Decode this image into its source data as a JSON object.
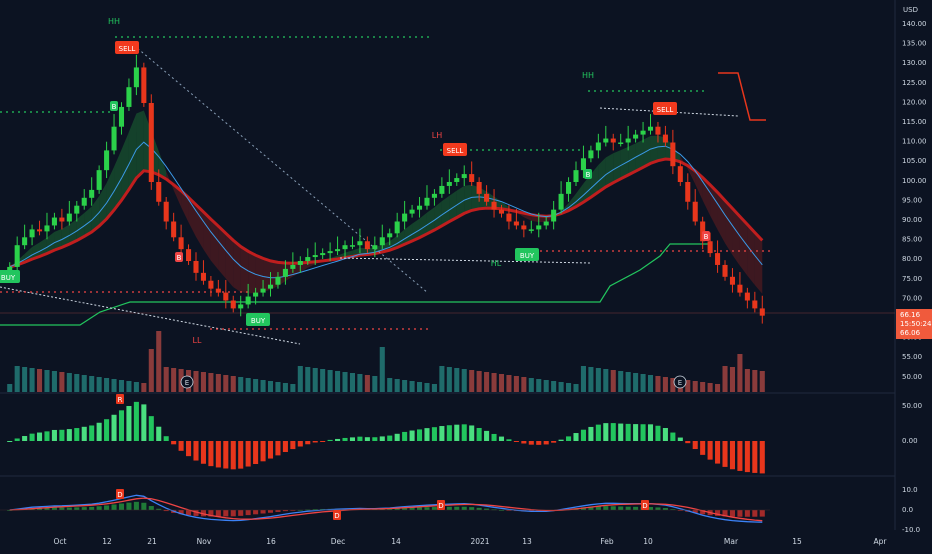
{
  "price_axis": {
    "currency": "USD",
    "ticks": [
      "140.00",
      "135.00",
      "130.00",
      "125.00",
      "120.00",
      "115.00",
      "110.00",
      "105.00",
      "100.00",
      "95.00",
      "90.00",
      "85.00",
      "80.00",
      "75.00",
      "70.00",
      "65.00",
      "60.00",
      "55.00",
      "50.00"
    ],
    "last_price_label": "66.16",
    "countdown_label": "15:50:24",
    "prev_close_label": "66.06"
  },
  "osc1_axis": {
    "ticks": [
      "50.00",
      "0.00"
    ]
  },
  "osc2_axis": {
    "ticks": [
      "10.0",
      "0.0",
      "-10.0"
    ]
  },
  "time_axis": {
    "labels": [
      "Oct",
      "12",
      "21",
      "Nov",
      "16",
      "Dec",
      "14",
      "2021",
      "13",
      "Feb",
      "10",
      "Mar",
      "15",
      "Apr"
    ]
  },
  "signals": [
    {
      "label": "SELL",
      "type": "sell"
    },
    {
      "label": "SELL",
      "type": "sell"
    },
    {
      "label": "SELL",
      "type": "sell"
    },
    {
      "label": "BUY",
      "type": "buy"
    },
    {
      "label": "BUY",
      "type": "buy"
    },
    {
      "label": "BUY",
      "type": "buy"
    }
  ],
  "structure_labels": [
    "HH",
    "LL",
    "LH",
    "HL",
    "HH"
  ],
  "markers": {
    "b": "B",
    "e": "E",
    "r": "R",
    "d": "D"
  },
  "colors": {
    "background": "#0c1322",
    "bull": "#2ecc40",
    "bear": "#e8361c",
    "sell_bg": "#f23a1e",
    "buy_bg": "#22c55e",
    "macd": "#3b82f6",
    "signal": "#ef4444"
  },
  "chart_data": {
    "type": "candlestick",
    "period": "2020-10 to 2021-03",
    "price_range": [
      50,
      140
    ],
    "closes": [
      78.5,
      84,
      86,
      88,
      87.5,
      89,
      91,
      90,
      92,
      94,
      96,
      98,
      103,
      108,
      114,
      119,
      124,
      129,
      120,
      100,
      95,
      90,
      86,
      83,
      80,
      77,
      75,
      73,
      72,
      70,
      68,
      69,
      71,
      72,
      73,
      74,
      76,
      78,
      79,
      80,
      81,
      81.5,
      82,
      82.5,
      83,
      84,
      84,
      85,
      83,
      84,
      86,
      87,
      90,
      92,
      93,
      94,
      96,
      97,
      99,
      100,
      101,
      102,
      100,
      97,
      95,
      93,
      92,
      90,
      89,
      88,
      88,
      89,
      90,
      93,
      97,
      100,
      103,
      106,
      108,
      110,
      111,
      110,
      110,
      111,
      112,
      113,
      114,
      112,
      110,
      104,
      100,
      95,
      90,
      85,
      82,
      79,
      76,
      74,
      72,
      70,
      68,
      66.16
    ],
    "events": [
      {
        "label": "SELL",
        "date": "2020-10-14",
        "price": 129
      },
      {
        "label": "SELL",
        "date": "2020-12-29",
        "price": 107
      },
      {
        "label": "SELL",
        "date": "2021-02-11",
        "price": 114
      },
      {
        "label": "BUY",
        "date": "2020-09-25",
        "price": 76
      },
      {
        "label": "BUY",
        "date": "2020-11-10",
        "price": 68
      },
      {
        "label": "BUY",
        "date": "2021-01-12",
        "price": 82
      }
    ],
    "volume_panel": {
      "levels": [
        "50.00"
      ]
    },
    "oscillator1_range": [
      -50,
      60
    ],
    "oscillator2_range": [
      -12,
      12
    ]
  }
}
